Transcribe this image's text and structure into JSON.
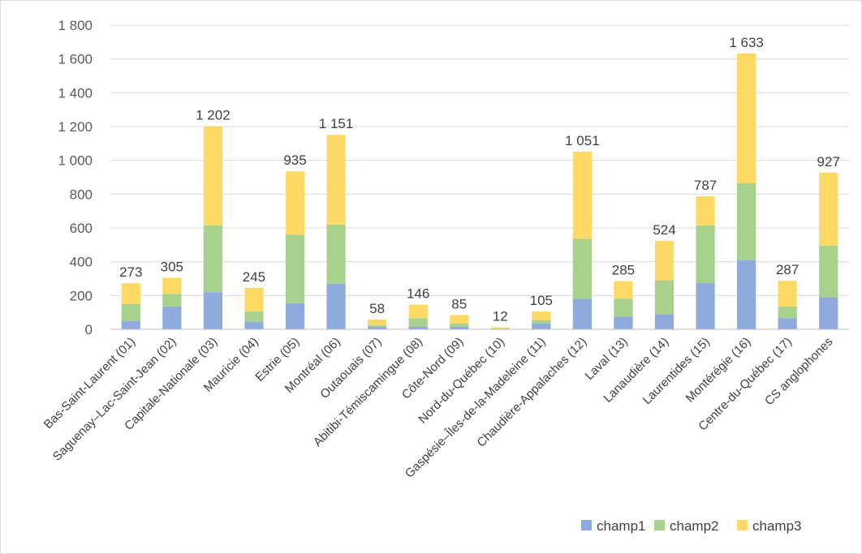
{
  "chart_data": {
    "type": "bar",
    "stacked": true,
    "categories": [
      "Bas-Saint-Laurent (01)",
      "Saguenay–Lac-Saint-Jean (02)",
      "Capitale-Nationale (03)",
      "Mauricie (04)",
      "Estrie (05)",
      "Montréal (06)",
      "Outaouais (07)",
      "Abitibi-Témiscamingue (08)",
      "Côte-Nord (09)",
      "Nord-du-Québec (10)",
      "Gaspésie–Îles-de-la-Madeleine (11)",
      "Chaudière-Appalaches (12)",
      "Laval (13)",
      "Lanaudière (14)",
      "Laurentides (15)",
      "Montérégie (16)",
      "Centre-du-Québec (17)",
      "CS anglophones"
    ],
    "series": [
      {
        "name": "champ1",
        "color": "#8faadc",
        "values": [
          50,
          135,
          220,
          45,
          155,
          270,
          15,
          15,
          15,
          2,
          35,
          180,
          75,
          90,
          275,
          410,
          65,
          190
        ]
      },
      {
        "name": "champ2",
        "color": "#a9d18e",
        "values": [
          100,
          75,
          395,
          60,
          405,
          350,
          10,
          50,
          20,
          3,
          20,
          355,
          105,
          200,
          340,
          455,
          70,
          305
        ]
      },
      {
        "name": "champ3",
        "color": "#ffd966",
        "values": [
          123,
          95,
          587,
          140,
          375,
          531,
          33,
          81,
          50,
          7,
          50,
          516,
          105,
          234,
          172,
          768,
          152,
          432
        ]
      }
    ],
    "totals": [
      "273",
      "305",
      "1 202",
      "245",
      "935",
      "1 151",
      "58",
      "146",
      "85",
      "12",
      "105",
      "1 051",
      "285",
      "524",
      "787",
      "1 633",
      "287",
      "927"
    ],
    "y_ticks": [
      "0",
      "200",
      "400",
      "600",
      "800",
      "1 000",
      "1 200",
      "1 400",
      "1 600",
      "1 800"
    ],
    "ylim": [
      0,
      1800
    ],
    "grid": true,
    "legend": "bottom-right",
    "gridline_color": "#d9d9d9"
  }
}
